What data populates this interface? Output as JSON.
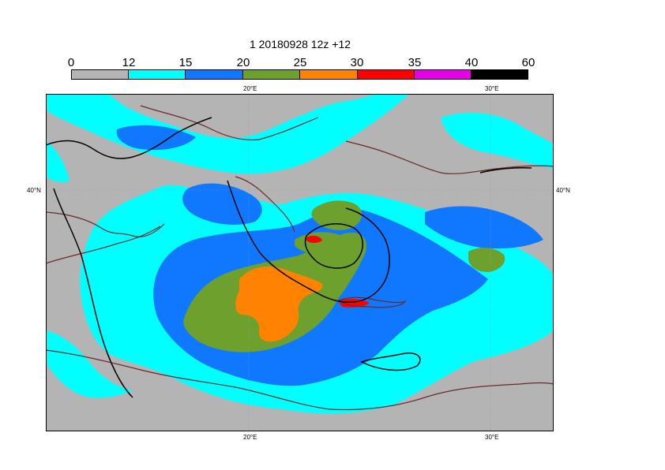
{
  "title": "1 20180928 12z +12",
  "colorbar": {
    "ticks": [
      "0",
      "12",
      "15",
      "20",
      "25",
      "30",
      "35",
      "40",
      "60"
    ],
    "colors": [
      "#b4b4b4",
      "#00ffff",
      "#0f78ff",
      "#6ea02d",
      "#ff8200",
      "#ff0000",
      "#e600e6",
      "#000000"
    ]
  },
  "map": {
    "lon_labels": {
      "top_1": "20°E",
      "top_2": "30°E",
      "bottom_1": "20°E",
      "bottom_2": "30°E"
    },
    "lat_labels": {
      "left": "40°N",
      "right": "40°N"
    },
    "colors": {
      "background": "#b4b4b4",
      "cyan": "#00ffff",
      "blue": "#0f78ff",
      "green": "#6ea02d",
      "orange": "#ff8200",
      "red": "#ff0000",
      "coast": "#6b2a2a",
      "contour": "#000000"
    }
  }
}
